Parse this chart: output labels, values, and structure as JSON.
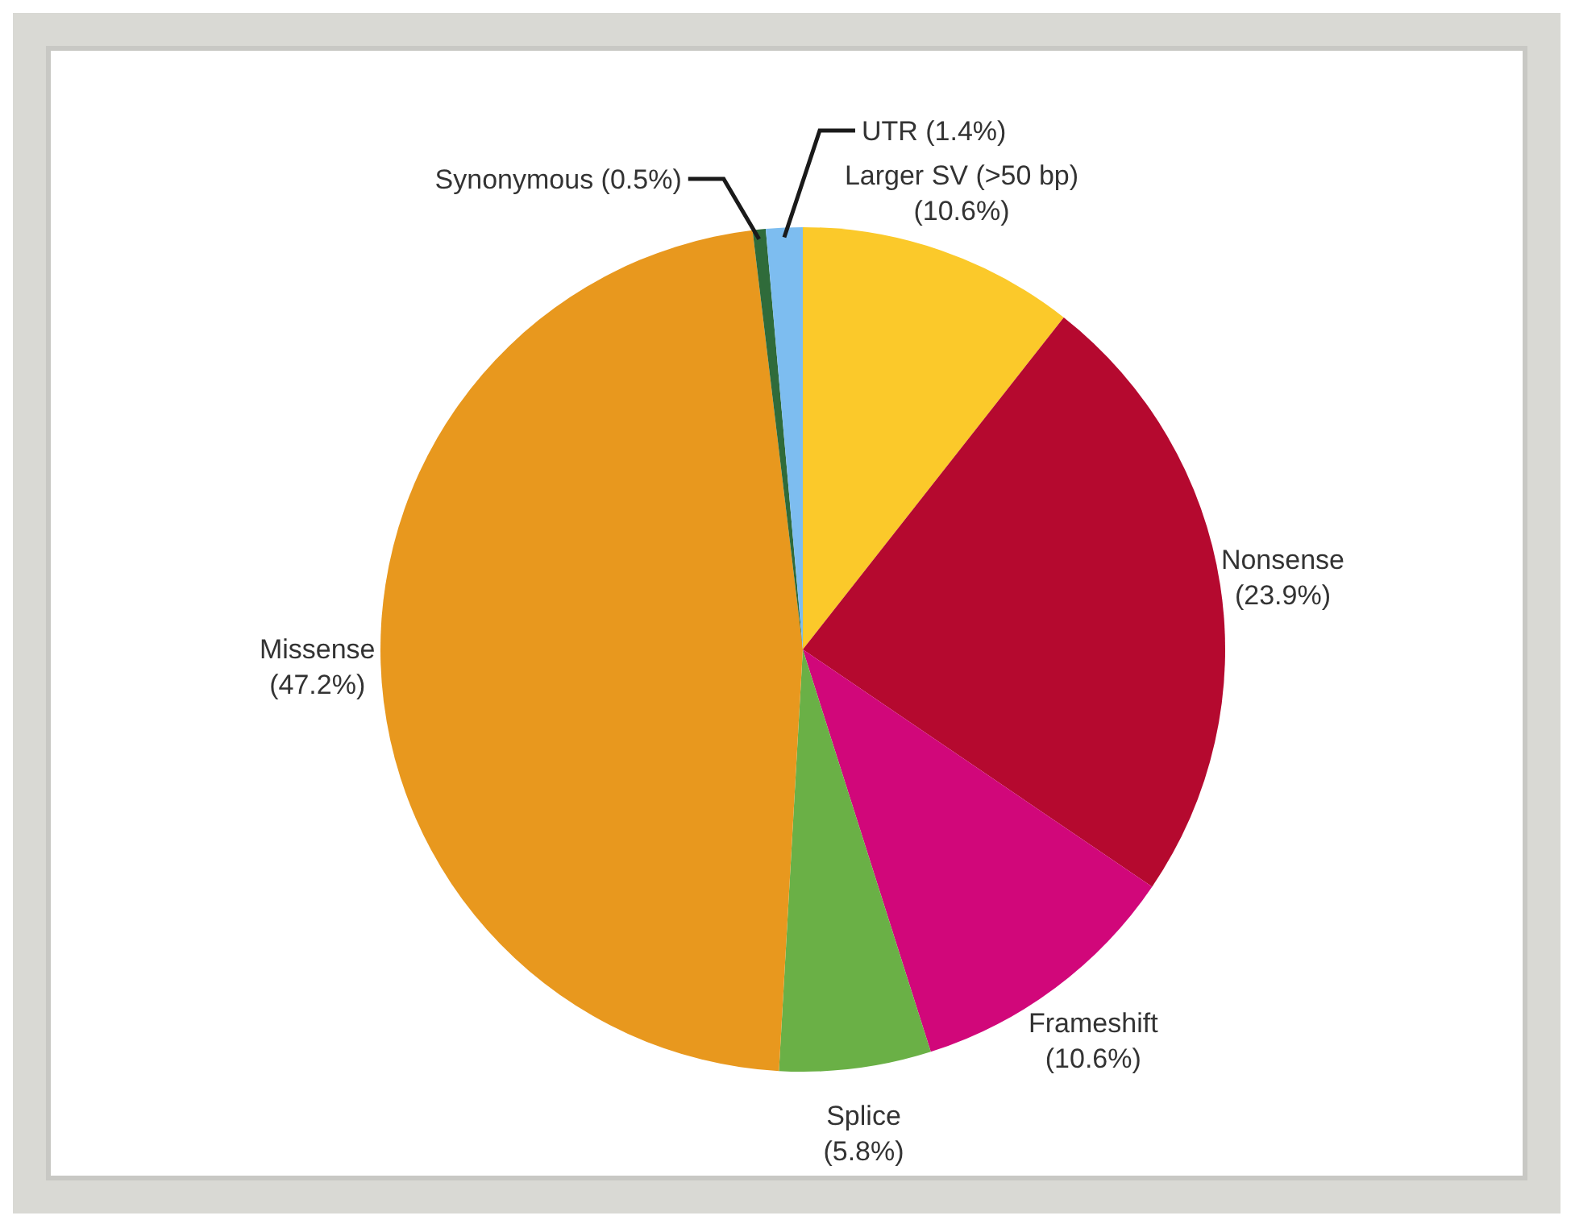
{
  "chart_data": {
    "type": "pie",
    "categories": [
      "Larger SV (>50 bp)",
      "Nonsense",
      "Frameshift",
      "Splice",
      "Missense",
      "Synonymous",
      "UTR"
    ],
    "values": [
      10.6,
      23.9,
      10.6,
      5.8,
      47.2,
      0.5,
      1.4
    ],
    "value_labels": [
      "(10.6%)",
      "(23.9%)",
      "(10.6%)",
      "(5.8%)",
      "(47.2%)",
      "(0.5%)",
      "(1.4%)"
    ],
    "colors": [
      "#fbc92a",
      "#b5092f",
      "#d1077a",
      "#6ab046",
      "#e8981e",
      "#2f6b3a",
      "#7dbdf0"
    ]
  }
}
